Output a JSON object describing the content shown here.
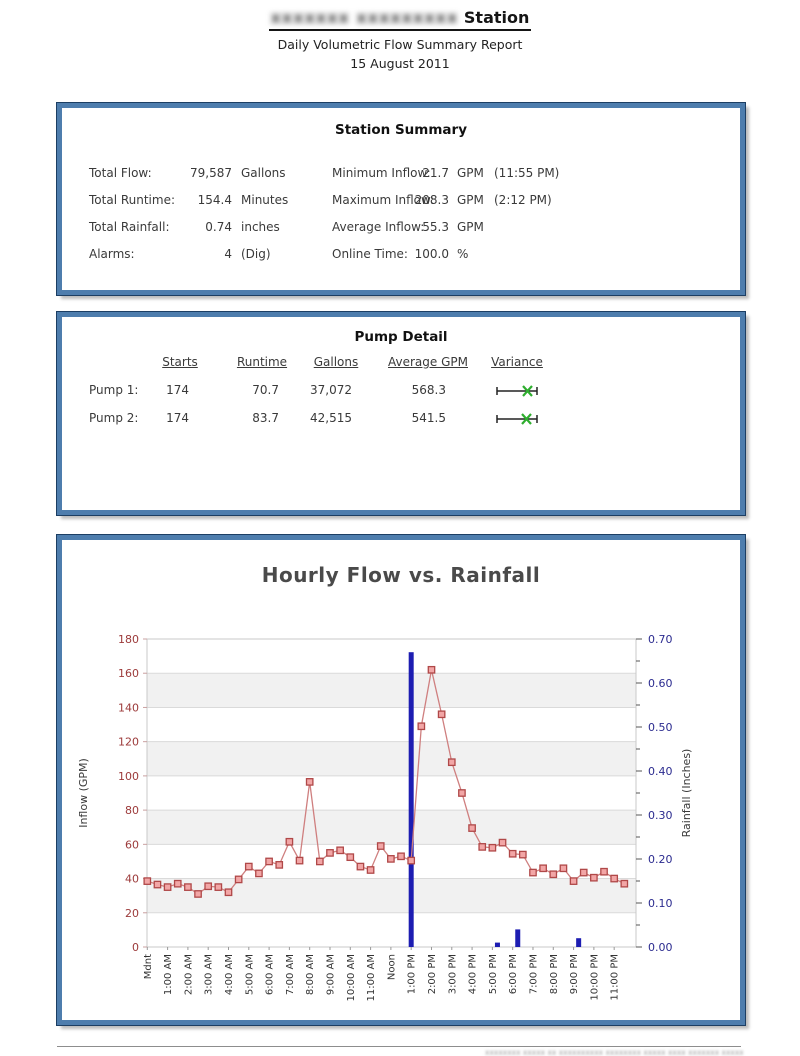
{
  "header": {
    "station_name_redacted": "xxxxxxx xxxxxxxxx",
    "station_suffix": "Station",
    "report_title": "Daily Volumetric Flow Summary Report",
    "report_date": "15 August 2011"
  },
  "station_summary": {
    "title": "Station Summary",
    "left": [
      {
        "label": "Total Flow:",
        "value": "79,587",
        "unit": "Gallons"
      },
      {
        "label": "Total Runtime:",
        "value": "154.4",
        "unit": "Minutes"
      },
      {
        "label": "Total Rainfall:",
        "value": "0.74",
        "unit": "inches"
      },
      {
        "label": "Alarms:",
        "value": "4",
        "unit": "(Dig)"
      }
    ],
    "right": [
      {
        "label": "Minimum Inflow:",
        "value": "21.7",
        "unit": "GPM",
        "note": "(11:55 PM)"
      },
      {
        "label": "Maximum Inflow:",
        "value": "208.3",
        "unit": "GPM",
        "note": "(2:12 PM)"
      },
      {
        "label": "Average Inflow:",
        "value": "55.3",
        "unit": "GPM",
        "note": ""
      },
      {
        "label": "Online Time:",
        "value": "100.0",
        "unit": "%",
        "note": ""
      }
    ]
  },
  "pump_detail": {
    "title": "Pump Detail",
    "columns": [
      "Starts",
      "Runtime",
      "Gallons",
      "Average GPM",
      "Variance"
    ],
    "rows": [
      {
        "name": "Pump 1:",
        "starts": "174",
        "runtime": "70.7",
        "gallons": "37,072",
        "avg_gpm": "568.3"
      },
      {
        "name": "Pump 2:",
        "starts": "174",
        "runtime": "83.7",
        "gallons": "42,515",
        "avg_gpm": "541.5"
      }
    ]
  },
  "chart_data": {
    "type": "line",
    "title": "Hourly Flow vs. Rainfall",
    "x_labels": [
      "Mdnt",
      "1:00 AM",
      "2:00 AM",
      "3:00 AM",
      "4:00 AM",
      "5:00 AM",
      "6:00 AM",
      "7:00 AM",
      "8:00 AM",
      "9:00 AM",
      "10:00 AM",
      "11:00 AM",
      "Noon",
      "1:00 PM",
      "2:00 PM",
      "3:00 PM",
      "4:00 PM",
      "5:00 PM",
      "6:00 PM",
      "7:00 PM",
      "8:00 PM",
      "9:00 PM",
      "10:00 PM",
      "11:00 PM"
    ],
    "left_axis": {
      "label": "Inflow  (GPM)",
      "min": 0,
      "max": 180,
      "step": 20,
      "tick_color": "#9c3a3a"
    },
    "right_axis": {
      "label": "Rainfall  (Inches)",
      "min": 0.0,
      "max": 0.7,
      "step": 0.1,
      "minor_step": 0.05,
      "tick_color": "#2b2b8f"
    },
    "grid": {
      "band_fill": "#f1f1f1",
      "grid_color": "#dadada",
      "border_color": "#c9c9c9"
    },
    "series": [
      {
        "name": "Inflow",
        "type": "line",
        "interval_minutes": 30,
        "color": "#cf7f7f",
        "marker": "square",
        "marker_fill": "#f2a6a6",
        "marker_stroke": "#b04848",
        "values": [
          38.5,
          36.5,
          35,
          37,
          35,
          31,
          35.5,
          35,
          32,
          39.5,
          47,
          43,
          50,
          48,
          61.5,
          50.5,
          96.5,
          50,
          55,
          56.5,
          52.5,
          47,
          45,
          59,
          51.5,
          53,
          50.5,
          129,
          162,
          136,
          108,
          90,
          69.5,
          58.5,
          58,
          61,
          54.5,
          54,
          43.5,
          46,
          42.5,
          46,
          38.5,
          43.5,
          40.5,
          44,
          40,
          37
        ]
      },
      {
        "name": "Rainfall",
        "type": "bar",
        "color": "#1d1db2",
        "bars": [
          {
            "hour": 13.0,
            "inches": 0.67
          },
          {
            "hour": 17.25,
            "inches": 0.01
          },
          {
            "hour": 18.25,
            "inches": 0.04
          },
          {
            "hour": 21.25,
            "inches": 0.02
          }
        ]
      }
    ]
  },
  "footer": {
    "redacted_text": "xxxxxxxx xxxxx xx xxxxxxxxxx xxxxxxxx xxxxx xxxx xxxxxxx xxxxx"
  }
}
